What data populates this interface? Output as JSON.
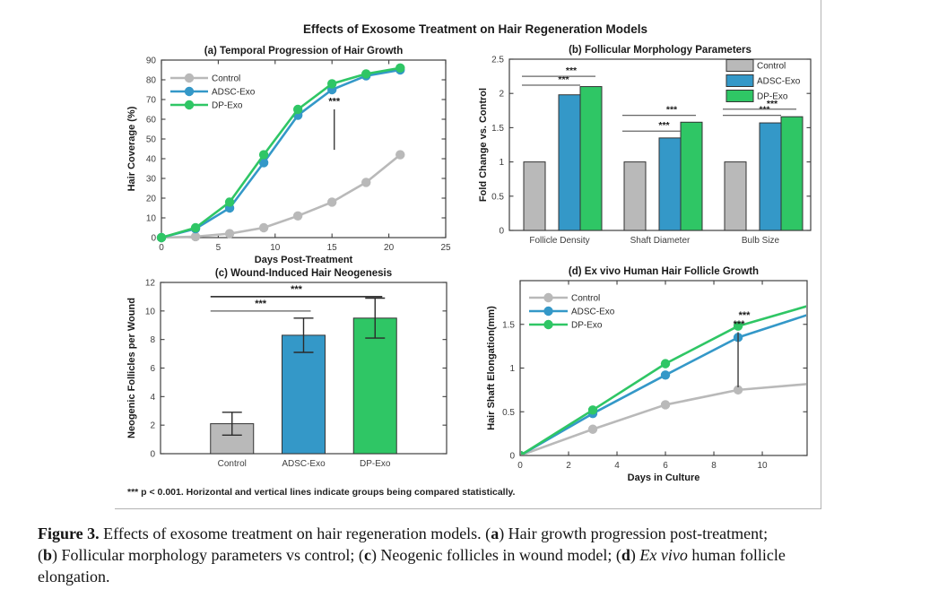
{
  "figure": {
    "suptitle": "Effects of Exosome Treatment on Hair Regeneration Models",
    "footnote": "*** p < 0.001. Horizontal and vertical lines indicate groups being compared statistically.",
    "legend_labels": [
      "Control",
      "ADSC-Exo",
      "DP-Exo"
    ],
    "colors": {
      "control": "#b9b9b9",
      "adsc_exo": "#3498c8",
      "dp_exo": "#2fc665",
      "axis": "#3f3f3f",
      "border": "#b3b3b3"
    }
  },
  "chart_data": [
    {
      "id": "a",
      "type": "line",
      "title": "(a) Temporal Progression of Hair Growth",
      "xlabel": "Days Post-Treatment",
      "ylabel": "Hair Coverage (%)",
      "xlim": [
        0,
        25
      ],
      "ylim": [
        0,
        90
      ],
      "xticks": [
        0,
        5,
        10,
        15,
        20,
        25
      ],
      "yticks": [
        0,
        10,
        20,
        30,
        40,
        50,
        60,
        70,
        80,
        90
      ],
      "x": [
        0,
        3,
        6,
        9,
        12,
        15,
        18,
        21
      ],
      "series": [
        {
          "name": "Control",
          "color": "#b9b9b9",
          "values": [
            0,
            0.5,
            2,
            5,
            11,
            18,
            28,
            42
          ]
        },
        {
          "name": "ADSC-Exo",
          "color": "#3498c8",
          "values": [
            0,
            4.5,
            15,
            38,
            62,
            75,
            82,
            85
          ]
        },
        {
          "name": "DP-Exo",
          "color": "#2fc665",
          "values": [
            0,
            5,
            18,
            42,
            65,
            78,
            83,
            86
          ]
        }
      ],
      "legend": "top-left",
      "significance": [
        {
          "kind": "vline",
          "x": 15.2,
          "y1": 44.5,
          "y2": 65,
          "label": "***",
          "label_y": 67.5
        }
      ]
    },
    {
      "id": "b",
      "type": "grouped-bar",
      "title": "(b) Follicular Morphology Parameters",
      "ylabel": "Fold Change vs. Control",
      "categories": [
        "Follicle Density",
        "Shaft Diameter",
        "Bulb Size"
      ],
      "ylim": [
        0,
        2.5
      ],
      "yticks": [
        0,
        0.5,
        1,
        1.5,
        2,
        2.5
      ],
      "series": [
        {
          "name": "Control",
          "color": "#b9b9b9",
          "values": [
            1,
            1,
            1
          ]
        },
        {
          "name": "ADSC-Exo",
          "color": "#3498c8",
          "values": [
            1.98,
            1.35,
            1.57
          ]
        },
        {
          "name": "DP-Exo",
          "color": "#2fc665",
          "values": [
            2.1,
            1.58,
            1.66
          ]
        }
      ],
      "legend": "top-right",
      "significance": [
        {
          "kind": "pair",
          "group": 0,
          "target": 1,
          "y": 2.12,
          "label": "***"
        },
        {
          "kind": "pair",
          "group": 0,
          "target": 2,
          "y": 2.25,
          "label": "***"
        },
        {
          "kind": "pair",
          "group": 1,
          "target": 1,
          "y": 1.45,
          "label": "***"
        },
        {
          "kind": "pair",
          "group": 1,
          "target": 2,
          "y": 1.68,
          "label": "***"
        },
        {
          "kind": "pair",
          "group": 2,
          "target": 1,
          "y": 1.68,
          "label": "***"
        },
        {
          "kind": "pair",
          "group": 2,
          "target": 2,
          "y": 1.77,
          "label": "***"
        }
      ]
    },
    {
      "id": "c",
      "type": "bar",
      "title": "(c) Wound-Induced Hair Neogenesis",
      "ylabel": "Neogenic Follicles per Wound",
      "categories": [
        "Control",
        "ADSC-Exo",
        "DP-Exo"
      ],
      "ylim": [
        0,
        12
      ],
      "yticks": [
        0,
        2,
        4,
        6,
        8,
        10,
        12
      ],
      "values": [
        2.1,
        8.3,
        9.5
      ],
      "errors": [
        0.8,
        1.2,
        1.4
      ],
      "bar_colors": [
        "#b9b9b9",
        "#3498c8",
        "#2fc665"
      ],
      "significance": [
        {
          "kind": "bracket",
          "from": 0,
          "to": 1,
          "y": 10,
          "label": "***",
          "line_color": "#7a7a7a"
        },
        {
          "kind": "bracket",
          "from": 0,
          "to": 2,
          "y": 11,
          "label": "***",
          "line_color": "#1a1a1a"
        }
      ]
    },
    {
      "id": "d",
      "type": "line",
      "title": "(d) Ex vivo Human Hair Follicle Growth",
      "xlabel": "Days in Culture",
      "ylabel": "Hair Shaft Elongation(mm)",
      "xlim": [
        0,
        11.85
      ],
      "ylim": [
        0,
        2
      ],
      "xticks": [
        0,
        2,
        4,
        6,
        8,
        10
      ],
      "yticks": [
        0,
        0.5,
        1,
        1.5
      ],
      "x": [
        0,
        3,
        6,
        9,
        12
      ],
      "series": [
        {
          "name": "Control",
          "color": "#b9b9b9",
          "values": [
            0,
            0.3,
            0.58,
            0.75,
            0.82
          ]
        },
        {
          "name": "ADSC-Exo",
          "color": "#3498c8",
          "values": [
            0,
            0.48,
            0.92,
            1.35,
            1.62
          ]
        },
        {
          "name": "DP-Exo",
          "color": "#2fc665",
          "values": [
            0,
            0.52,
            1.05,
            1.48,
            1.72
          ]
        }
      ],
      "legend": "top-left",
      "significance": [
        {
          "kind": "vline",
          "x": 9,
          "y1": 0.78,
          "y2": 1.41,
          "label": "***",
          "label_y": 1.57,
          "label2": "***",
          "label2_y": 1.465
        }
      ]
    }
  ],
  "caption": {
    "lines": [
      [
        {
          "text": "Figure 3.",
          "bold": true
        },
        {
          "text": " Effects of exosome treatment on hair regeneration models. ("
        },
        {
          "text": "a",
          "bold": true
        },
        {
          "text": ") Hair growth progression post-treatment;"
        }
      ],
      [
        {
          "text": "("
        },
        {
          "text": "b",
          "bold": true
        },
        {
          "text": ") Follicular morphology parameters vs control; ("
        },
        {
          "text": "c",
          "bold": true
        },
        {
          "text": ") Neogenic follicles in wound model; ("
        },
        {
          "text": "d",
          "bold": true
        },
        {
          "text": ") "
        },
        {
          "text": "Ex vivo",
          "italic": true
        },
        {
          "text": " human follicle"
        }
      ],
      [
        {
          "text": "elongation."
        }
      ]
    ]
  }
}
